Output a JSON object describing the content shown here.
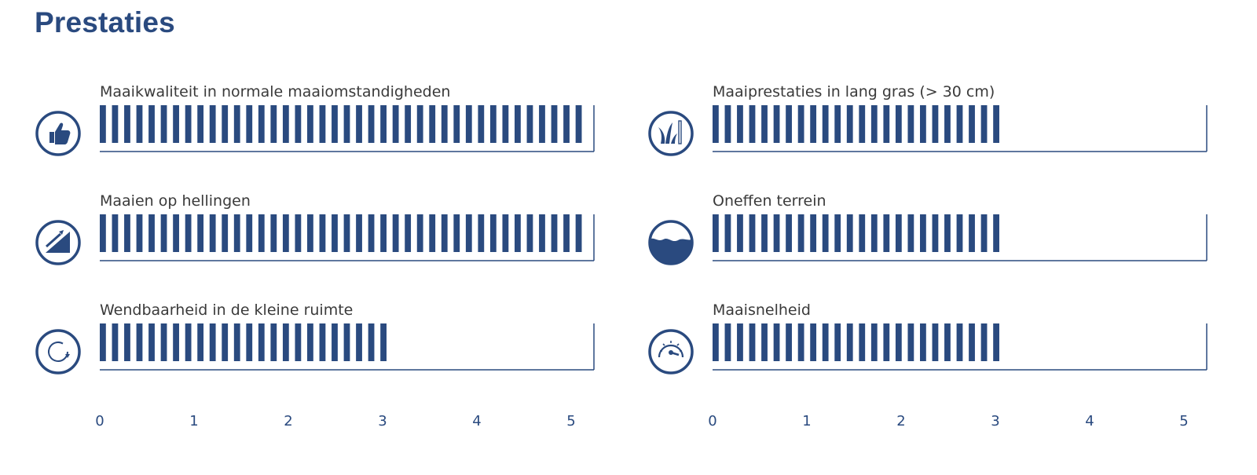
{
  "title": "Prestaties",
  "colors": {
    "accent": "#2a4a7f",
    "text": "#3a3a3a",
    "background": "#ffffff"
  },
  "chart_data": {
    "type": "bar",
    "orientation": "horizontal",
    "xlim": [
      0,
      5
    ],
    "ticks": [
      "0",
      "1",
      "2",
      "3",
      "4",
      "5"
    ],
    "categories": [
      "Maaikwaliteit in normale maaiomstandigheden",
      "Maaien op hellingen",
      "Wendbaarheid in de kleine ruimte",
      "Maaiprestaties in lang gras (> 30 cm)",
      "Oneffen terrein",
      "Maaisnelheid"
    ],
    "values": [
      5,
      5,
      3,
      3,
      3,
      3
    ],
    "icons": [
      "thumbs-up-icon",
      "slope-icon",
      "rotate-icon",
      "tall-grass-icon",
      "rough-terrain-icon",
      "speedometer-icon"
    ]
  }
}
